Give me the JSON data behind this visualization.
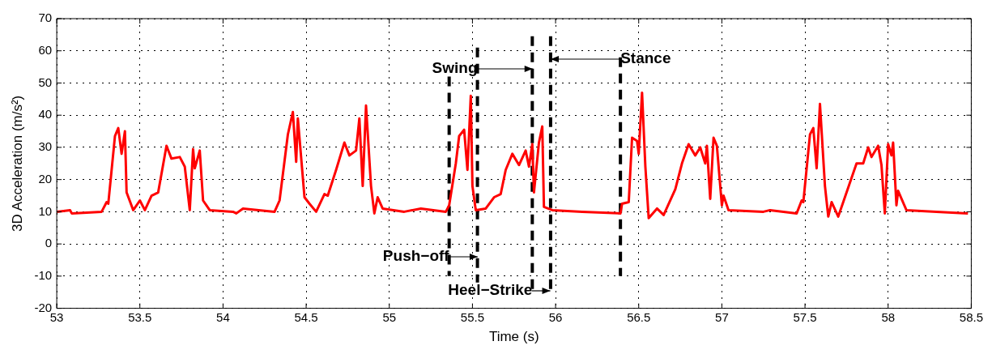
{
  "chart_data": {
    "type": "line",
    "xlabel": "Time (s)",
    "ylabel": "3D Acceleration (m/s²)",
    "xlim": [
      53,
      58.5
    ],
    "xticks": [
      53,
      53.5,
      54,
      54.5,
      55,
      55.5,
      56,
      56.5,
      57,
      57.5,
      58,
      58.5
    ],
    "ylim": [
      -20,
      70
    ],
    "yticks": [
      -20,
      -10,
      0,
      10,
      20,
      30,
      40,
      50,
      60,
      70
    ],
    "grid": true,
    "legend": false,
    "marker": "none",
    "series": [
      {
        "color": "#ff0000",
        "line_style": "solid",
        "x": [
          53.0,
          53.08,
          53.09,
          53.27,
          53.3,
          53.31,
          53.35,
          53.37,
          53.39,
          53.41,
          53.42,
          53.46,
          53.5,
          53.53,
          53.57,
          53.61,
          53.66,
          53.69,
          53.74,
          53.77,
          53.8,
          53.82,
          53.83,
          53.86,
          53.88,
          53.92,
          54.06,
          54.08,
          54.12,
          54.31,
          54.34,
          54.39,
          54.42,
          54.44,
          54.45,
          54.49,
          54.52,
          54.56,
          54.61,
          54.63,
          54.68,
          54.73,
          54.76,
          54.8,
          54.82,
          54.84,
          54.86,
          54.89,
          54.91,
          54.93,
          54.96,
          55.09,
          55.19,
          55.34,
          55.36,
          55.4,
          55.42,
          55.45,
          55.47,
          55.49,
          55.5,
          55.52,
          55.58,
          55.63,
          55.67,
          55.7,
          55.74,
          55.78,
          55.82,
          55.84,
          55.86,
          55.87,
          55.9,
          55.92,
          55.93,
          55.98,
          56.16,
          56.39,
          56.4,
          56.44,
          56.46,
          56.49,
          56.5,
          56.52,
          56.54,
          56.56,
          56.61,
          56.65,
          56.72,
          56.76,
          56.8,
          56.84,
          56.87,
          56.9,
          56.91,
          56.93,
          56.95,
          56.97,
          57.0,
          57.01,
          57.04,
          57.25,
          57.29,
          57.45,
          57.48,
          57.49,
          57.53,
          57.55,
          57.57,
          57.59,
          57.62,
          57.64,
          57.66,
          57.7,
          57.81,
          57.85,
          57.88,
          57.9,
          57.94,
          57.96,
          57.98,
          58.0,
          58.02,
          58.03,
          58.05,
          58.06,
          58.11,
          58.29,
          58.48
        ],
        "values": [
          10,
          10.5,
          9.5,
          10,
          13,
          12.5,
          33.5,
          36,
          28,
          35,
          16,
          10.5,
          13.5,
          10.5,
          15,
          16,
          30.5,
          26.5,
          27,
          24,
          10.5,
          29.5,
          23.5,
          29,
          13.5,
          10.5,
          10,
          9.5,
          11,
          10,
          13.5,
          34,
          41,
          25.5,
          39,
          14.5,
          12.5,
          10,
          15.5,
          15,
          23,
          31.5,
          27.5,
          29,
          39,
          18,
          43,
          18,
          9.5,
          14.5,
          11,
          10,
          11,
          10,
          12,
          25,
          33.5,
          35.5,
          23,
          46,
          18,
          10.5,
          11,
          14.5,
          15.5,
          23,
          28,
          24.5,
          29,
          24,
          31,
          16,
          31.5,
          36.5,
          11.5,
          10.5,
          10,
          9.5,
          12.5,
          13,
          33,
          32,
          28,
          47,
          24,
          8,
          11,
          9,
          17,
          25,
          31,
          27.5,
          30,
          25,
          30.5,
          14,
          33,
          30.5,
          12,
          15,
          10.5,
          10,
          10.5,
          9.5,
          13.5,
          13,
          34,
          36,
          23.5,
          43.5,
          18,
          8.5,
          13,
          8.5,
          25,
          25,
          30,
          27,
          30.5,
          24.5,
          9.5,
          31,
          27.5,
          31.5,
          12,
          16.5,
          10.5,
          10,
          9.5
        ]
      },
      {
        "color": "#000000",
        "line_style": "dashed",
        "x": [
          55.36,
          55.36
        ],
        "values": [
          52,
          -10
        ]
      },
      {
        "color": "#000000",
        "line_style": "dashed",
        "x": [
          55.53,
          55.53
        ],
        "values": [
          61,
          -12
        ]
      },
      {
        "color": "#000000",
        "line_style": "dashed",
        "x": [
          55.86,
          55.86
        ],
        "values": [
          64.5,
          -16
        ]
      },
      {
        "color": "#000000",
        "line_style": "dashed",
        "x": [
          55.97,
          55.97
        ],
        "values": [
          64.5,
          -16
        ]
      },
      {
        "color": "#000000",
        "line_style": "dashed",
        "x": [
          56.39,
          56.39
        ],
        "values": [
          58,
          -10
        ]
      }
    ],
    "annotations": [
      {
        "text": "Swing",
        "x": 55.53,
        "y": 54.5
      },
      {
        "text": "Stance",
        "x": 56.39,
        "y": 57.5
      },
      {
        "text": "Push−off",
        "x": 55.36,
        "y": -4
      },
      {
        "text": "Heel−Strike",
        "x": 55.86,
        "y": -14.5
      }
    ]
  }
}
